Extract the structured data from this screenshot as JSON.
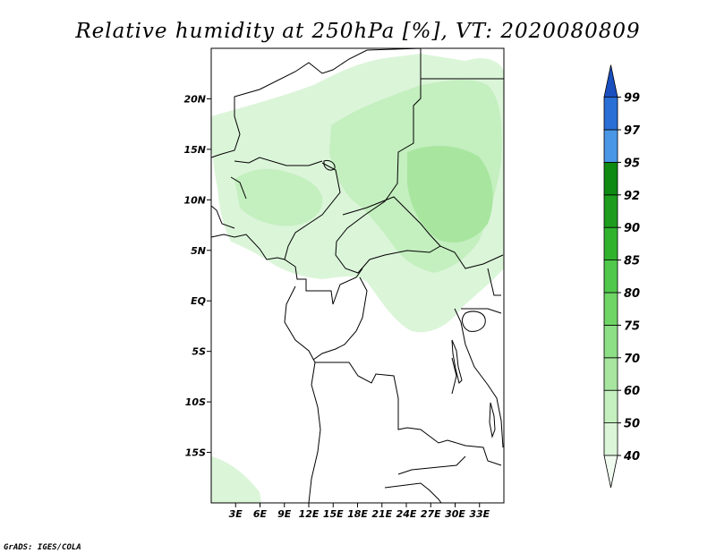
{
  "title": "Relative humidity at 250hPa [%], VT: 2020080809",
  "credit": "GrADS: IGES/COLA",
  "map": {
    "lon_range": [
      0,
      36
    ],
    "lat_range": [
      -20,
      25
    ],
    "lon_ticks": [
      {
        "value": 3,
        "label": "3E"
      },
      {
        "value": 6,
        "label": "6E"
      },
      {
        "value": 9,
        "label": "9E"
      },
      {
        "value": 12,
        "label": "12E"
      },
      {
        "value": 15,
        "label": "15E"
      },
      {
        "value": 18,
        "label": "18E"
      },
      {
        "value": 21,
        "label": "21E"
      },
      {
        "value": 24,
        "label": "24E"
      },
      {
        "value": 27,
        "label": "27E"
      },
      {
        "value": 30,
        "label": "30E"
      },
      {
        "value": 33,
        "label": "33E"
      }
    ],
    "lat_ticks": [
      {
        "value": 20,
        "label": "20N"
      },
      {
        "value": 15,
        "label": "15N"
      },
      {
        "value": 10,
        "label": "10N"
      },
      {
        "value": 5,
        "label": "5N"
      },
      {
        "value": 0,
        "label": "EQ"
      },
      {
        "value": -5,
        "label": "5S"
      },
      {
        "value": -10,
        "label": "10S"
      },
      {
        "value": -15,
        "label": "15S"
      }
    ]
  },
  "colorbar": {
    "levels": [
      "40",
      "50",
      "60",
      "70",
      "75",
      "80",
      "85",
      "90",
      "92",
      "95",
      "97",
      "99"
    ],
    "colors": [
      "#f0fcf0",
      "#dbf5d9",
      "#c4efbf",
      "#a8e6a0",
      "#8ddf86",
      "#6fd565",
      "#4fc84b",
      "#2fb32d",
      "#1d9c1d",
      "#0e8a12",
      "#4a97e6",
      "#2a6fd6",
      "#1a4fbf"
    ]
  }
}
